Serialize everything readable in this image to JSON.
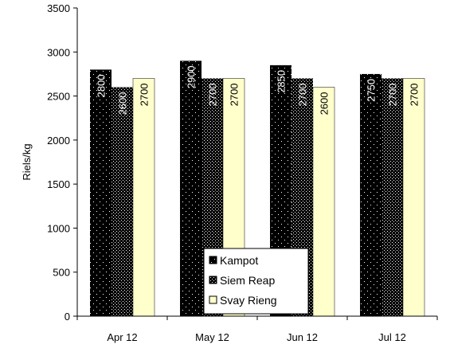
{
  "chart_data": {
    "type": "bar",
    "categories": [
      "Apr 12",
      "May 12",
      "Jun 12",
      "Jul 12"
    ],
    "series": [
      {
        "name": "Kampot",
        "values": [
          2800,
          2900,
          2850,
          2750
        ],
        "color": "#000000"
      },
      {
        "name": "Siem Reap",
        "values": [
          2600,
          2700,
          2700,
          2700
        ],
        "color": "#1a1a1a"
      },
      {
        "name": "Svay Rieng",
        "values": [
          2700,
          2700,
          2600,
          2700
        ],
        "color": "#ffffcc"
      }
    ],
    "title": "",
    "xlabel": "",
    "ylabel": "Riels/kg",
    "ylim": [
      0,
      3500
    ],
    "yticks": [
      0,
      500,
      1000,
      1500,
      2000,
      2500,
      3000,
      3500
    ],
    "grid": false,
    "legend_position": "bottom-center",
    "data_labels": true
  }
}
